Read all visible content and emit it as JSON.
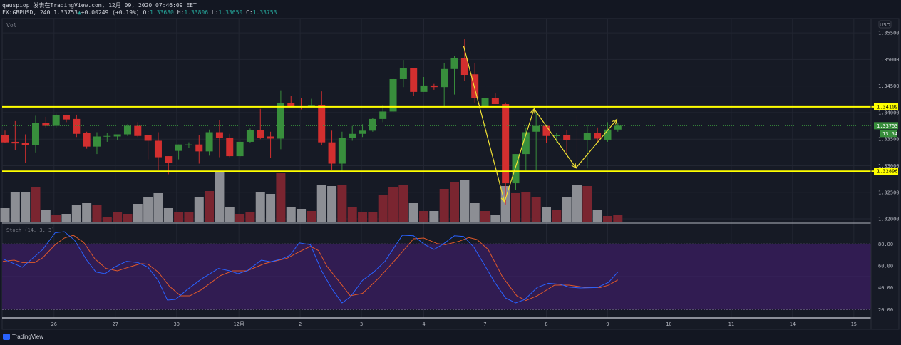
{
  "header": {
    "line1": "qauspiop 发表在TradingView.com, 12月 09, 2020 07:46:09 EET",
    "symbol": "FX:GBPUSD, 240 1.33753",
    "change_arrow": "▲",
    "change": "+0.00249 (+0.19%)",
    "o_label": "O:",
    "o": "1.33680",
    "h_label": "H:",
    "h": "1.33806",
    "l_label": "L:",
    "l": "1.33650",
    "c_label": "C:",
    "c": "1.33753"
  },
  "panes": {
    "volume_label": "Vol",
    "currency": "USD",
    "stoch_label": "Stoch (14, 3, 3)",
    "countdown": "13:54",
    "last_price": "1.33753"
  },
  "colors": {
    "bg": "#131722",
    "pane": "#161a25",
    "up": "#388e3c",
    "down": "#d32f2f",
    "vol_up": "#8c8e94",
    "vol_down": "#7a2530",
    "stoch_k": "#2962ff",
    "stoch_d": "#e0592a",
    "stoch_band": "#311c52",
    "drawing": "#ffff00"
  },
  "chart_data": {
    "type": "candlestick",
    "symbol": "GBPUSD",
    "timeframe": "240",
    "price_range": [
      1.3192,
      1.3577
    ],
    "price_ticks": [
      "1.35500",
      "1.35000",
      "1.34500",
      "1.34000",
      "1.33500",
      "1.33000",
      "1.32500",
      "1.32000"
    ],
    "x_labels": [
      {
        "idx": 4.8,
        "label": "26"
      },
      {
        "idx": 10.8,
        "label": "27"
      },
      {
        "idx": 16.8,
        "label": "30"
      },
      {
        "idx": 22.9,
        "label": "12月"
      },
      {
        "idx": 28.9,
        "label": "2"
      },
      {
        "idx": 34.9,
        "label": "3"
      },
      {
        "idx": 41,
        "label": "4"
      },
      {
        "idx": 47,
        "label": "7"
      },
      {
        "idx": 53,
        "label": "8"
      },
      {
        "idx": 59,
        "label": "9"
      },
      {
        "idx": 65,
        "label": "10"
      },
      {
        "idx": 71.1,
        "label": "11"
      },
      {
        "idx": 77.1,
        "label": "14"
      },
      {
        "idx": 83.1,
        "label": "15"
      }
    ],
    "candles": [
      [
        1.3357,
        1.3366,
        1.3343,
        1.3344
      ],
      [
        1.3345,
        1.3384,
        1.333,
        1.3342
      ],
      [
        1.3343,
        1.3359,
        1.3305,
        1.3339
      ],
      [
        1.3339,
        1.3394,
        1.3325,
        1.338
      ],
      [
        1.338,
        1.3392,
        1.3372,
        1.3375
      ],
      [
        1.3375,
        1.3398,
        1.3371,
        1.3395
      ],
      [
        1.3395,
        1.3396,
        1.3382,
        1.3387
      ],
      [
        1.3388,
        1.3396,
        1.3354,
        1.336
      ],
      [
        1.3362,
        1.3364,
        1.3332,
        1.3336
      ],
      [
        1.3336,
        1.3363,
        1.3322,
        1.3355
      ],
      [
        1.3355,
        1.3362,
        1.3345,
        1.3356
      ],
      [
        1.3355,
        1.3359,
        1.3348,
        1.3359
      ],
      [
        1.3359,
        1.3378,
        1.3356,
        1.3375
      ],
      [
        1.3375,
        1.3382,
        1.3354,
        1.3356
      ],
      [
        1.3357,
        1.3357,
        1.3312,
        1.3347
      ],
      [
        1.3347,
        1.3363,
        1.3292,
        1.3316
      ],
      [
        1.3318,
        1.3318,
        1.3284,
        1.3305
      ],
      [
        1.3328,
        1.334,
        1.3312,
        1.334
      ],
      [
        1.334,
        1.3344,
        1.3334,
        1.334
      ],
      [
        1.334,
        1.3357,
        1.3304,
        1.3327
      ],
      [
        1.3327,
        1.3368,
        1.3319,
        1.3363
      ],
      [
        1.3363,
        1.3386,
        1.3316,
        1.3352
      ],
      [
        1.3353,
        1.336,
        1.3316,
        1.3318
      ],
      [
        1.3318,
        1.3348,
        1.3316,
        1.3345
      ],
      [
        1.3345,
        1.337,
        1.3343,
        1.3367
      ],
      [
        1.3367,
        1.3407,
        1.335,
        1.3353
      ],
      [
        1.3355,
        1.3364,
        1.3315,
        1.3351
      ],
      [
        1.3351,
        1.3442,
        1.3331,
        1.3418
      ],
      [
        1.3418,
        1.3431,
        1.3411,
        1.3411
      ],
      [
        1.3412,
        1.3428,
        1.3406,
        1.3411
      ],
      [
        1.3412,
        1.3426,
        1.341,
        1.3413
      ],
      [
        1.3414,
        1.344,
        1.3339,
        1.3344
      ],
      [
        1.3344,
        1.3366,
        1.3292,
        1.3304
      ],
      [
        1.3304,
        1.3364,
        1.3288,
        1.3352
      ],
      [
        1.3352,
        1.3375,
        1.3347,
        1.336
      ],
      [
        1.336,
        1.3378,
        1.3354,
        1.3366
      ],
      [
        1.3366,
        1.339,
        1.3364,
        1.3388
      ],
      [
        1.3388,
        1.3414,
        1.3382,
        1.3402
      ],
      [
        1.3402,
        1.3466,
        1.3399,
        1.3463
      ],
      [
        1.3463,
        1.3499,
        1.3448,
        1.3484
      ],
      [
        1.3484,
        1.3484,
        1.3431,
        1.3439
      ],
      [
        1.3439,
        1.3467,
        1.3439,
        1.3451
      ],
      [
        1.3451,
        1.3454,
        1.3443,
        1.3448
      ],
      [
        1.3448,
        1.3493,
        1.3411,
        1.3482
      ],
      [
        1.3482,
        1.3507,
        1.3434,
        1.3502
      ],
      [
        1.3502,
        1.3538,
        1.346,
        1.3471
      ],
      [
        1.3472,
        1.3493,
        1.3419,
        1.3428
      ],
      [
        1.341,
        1.3428,
        1.3408,
        1.3428
      ],
      [
        1.3428,
        1.3436,
        1.3416,
        1.3416
      ],
      [
        1.3416,
        1.3419,
        1.3227,
        1.3267
      ],
      [
        1.3267,
        1.3322,
        1.3255,
        1.3322
      ],
      [
        1.3322,
        1.3372,
        1.3291,
        1.3363
      ],
      [
        1.3364,
        1.3402,
        1.3291,
        1.3375
      ],
      [
        1.3375,
        1.3375,
        1.3343,
        1.3356
      ],
      [
        1.3357,
        1.3362,
        1.3344,
        1.3357
      ],
      [
        1.3357,
        1.3367,
        1.3323,
        1.3348
      ],
      [
        1.3349,
        1.3394,
        1.3292,
        1.3348
      ],
      [
        1.3348,
        1.3376,
        1.3295,
        1.3361
      ],
      [
        1.3361,
        1.3372,
        1.3343,
        1.3351
      ],
      [
        1.3349,
        1.3382,
        1.3345,
        1.3368
      ],
      [
        1.3368,
        1.338,
        1.3364,
        1.33753
      ]
    ],
    "volume": [
      [
        20,
        1
      ],
      [
        43,
        1
      ],
      [
        43,
        1
      ],
      [
        49,
        0
      ],
      [
        18,
        1
      ],
      [
        11,
        0
      ],
      [
        12,
        1
      ],
      [
        25,
        1
      ],
      [
        27,
        1
      ],
      [
        25,
        0
      ],
      [
        7,
        0
      ],
      [
        14,
        0
      ],
      [
        12,
        0
      ],
      [
        26,
        1
      ],
      [
        35,
        1
      ],
      [
        41,
        1
      ],
      [
        20,
        1
      ],
      [
        15,
        0
      ],
      [
        14,
        0
      ],
      [
        36,
        1
      ],
      [
        44,
        0
      ],
      [
        72,
        1
      ],
      [
        21,
        1
      ],
      [
        12,
        0
      ],
      [
        15,
        0
      ],
      [
        42,
        1
      ],
      [
        40,
        1
      ],
      [
        69,
        0
      ],
      [
        22,
        1
      ],
      [
        19,
        1
      ],
      [
        16,
        0
      ],
      [
        53,
        1
      ],
      [
        51,
        1
      ],
      [
        52,
        0
      ],
      [
        21,
        0
      ],
      [
        14,
        0
      ],
      [
        14,
        0
      ],
      [
        39,
        0
      ],
      [
        49,
        0
      ],
      [
        52,
        0
      ],
      [
        27,
        1
      ],
      [
        16,
        0
      ],
      [
        16,
        1
      ],
      [
        47,
        0
      ],
      [
        56,
        0
      ],
      [
        59,
        1
      ],
      [
        27,
        1
      ],
      [
        16,
        0
      ],
      [
        11,
        1
      ],
      [
        51,
        1
      ],
      [
        41,
        0
      ],
      [
        42,
        0
      ],
      [
        36,
        0
      ],
      [
        21,
        1
      ],
      [
        17,
        0
      ],
      [
        36,
        1
      ],
      [
        52,
        1
      ],
      [
        51,
        0
      ],
      [
        18,
        1
      ],
      [
        9,
        0
      ],
      [
        10,
        0
      ]
    ],
    "horizontal_levels": [
      "1.34109",
      "1.32896"
    ],
    "trend_path": [
      [
        44.9,
        1.3525
      ],
      [
        48.9,
        1.3232
      ],
      [
        51.8,
        1.3407
      ],
      [
        55.9,
        1.3296
      ],
      [
        59.9,
        1.3387
      ]
    ],
    "stochastic": {
      "params": "14, 3, 3",
      "range": [
        0,
        100
      ],
      "bands": [
        80,
        20
      ],
      "ticks": [
        "80.00",
        "60.00",
        "40.00",
        "20.00"
      ],
      "k": [
        [
          -0.2,
          66.3
        ],
        [
          1.7,
          58.7
        ],
        [
          3.7,
          75
        ],
        [
          4.9,
          90.2
        ],
        [
          5.8,
          91.3
        ],
        [
          6.8,
          83.6
        ],
        [
          8,
          65.2
        ],
        [
          8.9,
          54.3
        ],
        [
          9.8,
          52.8
        ],
        [
          10.7,
          58.7
        ],
        [
          11.9,
          64.1
        ],
        [
          13,
          63
        ],
        [
          14,
          58.7
        ],
        [
          15,
          46.7
        ],
        [
          15.9,
          28.7
        ],
        [
          16.7,
          29.3
        ],
        [
          17.8,
          38
        ],
        [
          19.2,
          47.8
        ],
        [
          20.9,
          57.6
        ],
        [
          22,
          55.4
        ],
        [
          22.8,
          52.8
        ],
        [
          23.7,
          55.4
        ],
        [
          25.1,
          65.2
        ],
        [
          26,
          63.7
        ],
        [
          27.1,
          66.3
        ],
        [
          27.9,
          69.6
        ],
        [
          28.8,
          81
        ],
        [
          29.9,
          79.3
        ],
        [
          31,
          55.4
        ],
        [
          32,
          39.1
        ],
        [
          33,
          26.1
        ],
        [
          33.8,
          31.5
        ],
        [
          35,
          46.7
        ],
        [
          36.1,
          54.3
        ],
        [
          37.2,
          64.1
        ],
        [
          38.9,
          88
        ],
        [
          40,
          87.5
        ],
        [
          41.1,
          79.3
        ],
        [
          42,
          75
        ],
        [
          42.8,
          79.3
        ],
        [
          44,
          87.5
        ],
        [
          44.9,
          86.9
        ],
        [
          45.9,
          77.1
        ],
        [
          47,
          59.8
        ],
        [
          47.9,
          45.6
        ],
        [
          49,
          30.6
        ],
        [
          50,
          26.1
        ],
        [
          50.9,
          29.3
        ],
        [
          52.1,
          40.2
        ],
        [
          53.2,
          44.1
        ],
        [
          54.4,
          43.1
        ],
        [
          55.2,
          40.6
        ],
        [
          56.3,
          39.8
        ],
        [
          58,
          40.2
        ],
        [
          59.1,
          45
        ],
        [
          60,
          54.3
        ]
      ],
      "d": [
        [
          -0.2,
          64.1
        ],
        [
          0.9,
          65.2
        ],
        [
          1.7,
          63
        ],
        [
          2.9,
          63
        ],
        [
          3.7,
          67.4
        ],
        [
          4.9,
          79.3
        ],
        [
          5.8,
          85.4
        ],
        [
          6.7,
          88
        ],
        [
          7.7,
          81.5
        ],
        [
          8.8,
          66.3
        ],
        [
          9.9,
          57.6
        ],
        [
          11,
          55.4
        ],
        [
          12.1,
          58.7
        ],
        [
          13.3,
          62
        ],
        [
          14,
          61.5
        ],
        [
          15,
          54.3
        ],
        [
          16.1,
          41.3
        ],
        [
          17.2,
          32.6
        ],
        [
          18.1,
          32.6
        ],
        [
          19.2,
          38
        ],
        [
          21.1,
          51.1
        ],
        [
          22.3,
          55.4
        ],
        [
          23.7,
          55.4
        ],
        [
          25.4,
          62
        ],
        [
          27.6,
          66.9
        ],
        [
          28.8,
          72.8
        ],
        [
          29.9,
          77.8
        ],
        [
          30.7,
          73.9
        ],
        [
          31.5,
          59.8
        ],
        [
          33,
          42.3
        ],
        [
          33.8,
          32.6
        ],
        [
          35,
          34.8
        ],
        [
          36.6,
          48.9
        ],
        [
          38.3,
          66.3
        ],
        [
          40,
          84.8
        ],
        [
          41,
          85.4
        ],
        [
          42.3,
          80.4
        ],
        [
          43.1,
          79.3
        ],
        [
          44.5,
          82.6
        ],
        [
          45.4,
          85.9
        ],
        [
          46.2,
          84.1
        ],
        [
          47.3,
          75
        ],
        [
          48.7,
          50
        ],
        [
          50.1,
          32.6
        ],
        [
          51,
          28.3
        ],
        [
          52.1,
          32.6
        ],
        [
          53.8,
          42.4
        ],
        [
          55.2,
          42.4
        ],
        [
          56.9,
          40.2
        ],
        [
          58.3,
          40.2
        ],
        [
          59.1,
          42.4
        ],
        [
          60,
          47.1
        ]
      ]
    }
  },
  "footer": {
    "brand": "TradingView"
  }
}
